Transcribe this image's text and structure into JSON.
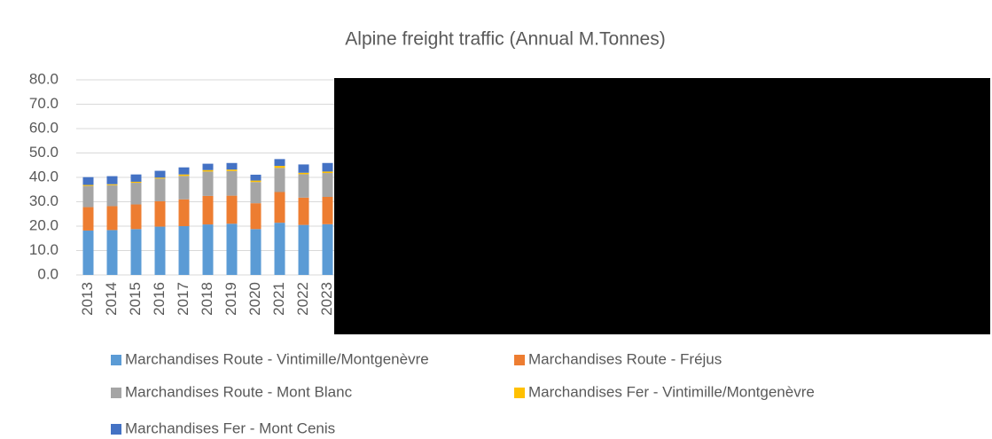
{
  "chart_data": {
    "type": "stacked_bar",
    "title": "Alpine freight traffic (Annual M.Tonnes)",
    "categories": [
      "2013",
      "2014",
      "2015",
      "2016",
      "2017",
      "2018",
      "2019",
      "2020",
      "2021",
      "2022",
      "2023"
    ],
    "series": [
      {
        "name": "Marchandises Route - Vintimille/Montgenèvre",
        "color": "#5b9bd5",
        "values": [
          18.2,
          18.4,
          18.8,
          19.8,
          20.0,
          20.7,
          21.0,
          18.8,
          21.4,
          20.5,
          20.8
        ]
      },
      {
        "name": "Marchandises Route - Fréjus",
        "color": "#ed7d31",
        "values": [
          9.6,
          9.8,
          10.1,
          10.4,
          11.0,
          11.7,
          11.5,
          10.6,
          12.6,
          11.2,
          11.2
        ]
      },
      {
        "name": "Marchandises Route - Mont Blanc",
        "color": "#a5a5a5",
        "values": [
          8.7,
          8.6,
          8.9,
          9.3,
          9.6,
          10.0,
          10.1,
          8.7,
          9.9,
          9.6,
          9.8
        ]
      },
      {
        "name": "Marchandises Fer - Vintimille/Montgenèvre",
        "color": "#ffc000",
        "values": [
          0.4,
          0.4,
          0.4,
          0.4,
          0.6,
          0.6,
          0.6,
          0.6,
          0.8,
          0.6,
          0.6
        ]
      },
      {
        "name": "Marchandises Fer - Mont Cenis",
        "color": "#4472c4",
        "values": [
          3.2,
          3.3,
          3.0,
          2.8,
          2.9,
          2.6,
          2.7,
          2.4,
          2.8,
          3.4,
          3.5
        ]
      }
    ],
    "ylim": [
      0,
      80
    ],
    "yticks": [
      {
        "value": 0,
        "label": "0.0"
      },
      {
        "value": 10,
        "label": "10.0"
      },
      {
        "value": 20,
        "label": "20.0"
      },
      {
        "value": 30,
        "label": "30.0"
      },
      {
        "value": 40,
        "label": "40.0"
      },
      {
        "value": 50,
        "label": "50.0"
      },
      {
        "value": 60,
        "label": "60.0"
      },
      {
        "value": 70,
        "label": "70.0"
      },
      {
        "value": 80,
        "label": "80.0"
      }
    ],
    "grid": true
  }
}
